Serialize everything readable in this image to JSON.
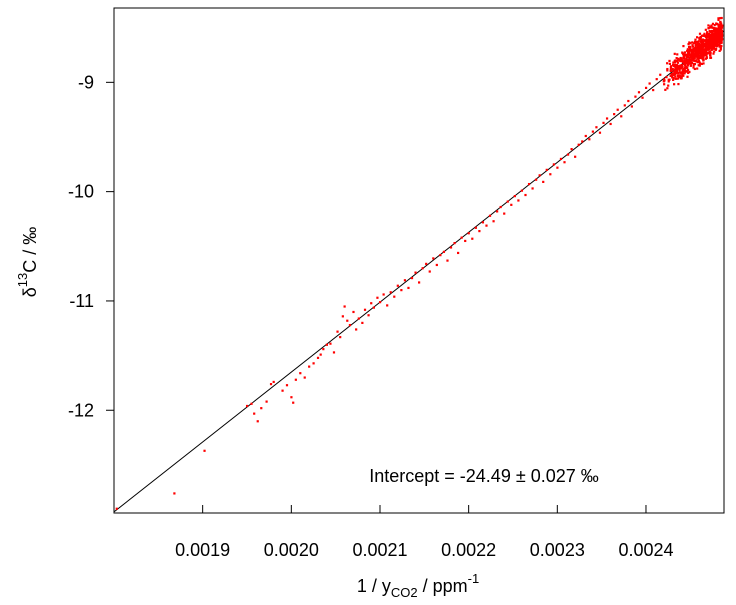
{
  "chart_data": {
    "type": "scatter",
    "title": "",
    "xlabel": {
      "main": "1 / y",
      "sub": "CO2",
      "mid": " / ppm",
      "sup": "-1"
    },
    "ylabel": {
      "pre": "δ",
      "sup": "13",
      "post": "C / ‰"
    },
    "xlim": [
      0.0018,
      0.002488
    ],
    "ylim": [
      -12.94,
      -8.32
    ],
    "xticks": [
      {
        "v": 0.0019,
        "label": "0.0019"
      },
      {
        "v": 0.002,
        "label": "0.0020"
      },
      {
        "v": 0.0021,
        "label": "0.0021"
      },
      {
        "v": 0.0022,
        "label": "0.0022"
      },
      {
        "v": 0.0023,
        "label": "0.0023"
      },
      {
        "v": 0.0024,
        "label": "0.0024"
      }
    ],
    "yticks": [
      {
        "v": -9,
        "label": "-9"
      },
      {
        "v": -10,
        "label": "-10"
      },
      {
        "v": -11,
        "label": "-11"
      },
      {
        "v": -12,
        "label": "-12"
      }
    ],
    "annotation": "Intercept = -24.49 ± 0.027 ‰",
    "fit_line": {
      "x": [
        0.0018,
        0.002488
      ],
      "y": [
        -12.93,
        -8.53
      ]
    },
    "series": [
      {
        "color": "#ff0000",
        "points": [
          [
            0.001803,
            -12.9
          ],
          [
            0.001868,
            -12.76
          ],
          [
            0.001902,
            -12.37
          ],
          [
            0.00195,
            -11.96
          ],
          [
            0.001955,
            -11.94
          ],
          [
            0.001958,
            -12.03
          ],
          [
            0.001962,
            -12.1
          ],
          [
            0.001966,
            -11.98
          ],
          [
            0.001972,
            -11.92
          ],
          [
            0.001977,
            -11.76
          ],
          [
            0.00198,
            -11.74
          ],
          [
            0.00199,
            -11.82
          ],
          [
            0.001995,
            -11.77
          ],
          [
            0.002,
            -11.88
          ],
          [
            0.002002,
            -11.93
          ],
          [
            0.002005,
            -11.72
          ],
          [
            0.00201,
            -11.66
          ],
          [
            0.002015,
            -11.7
          ],
          [
            0.00202,
            -11.6
          ],
          [
            0.002025,
            -11.57
          ],
          [
            0.00203,
            -11.52
          ],
          [
            0.002033,
            -11.49
          ],
          [
            0.002036,
            -11.44
          ],
          [
            0.00204,
            -11.4
          ],
          [
            0.002044,
            -11.39
          ],
          [
            0.002048,
            -11.47
          ],
          [
            0.002052,
            -11.28
          ],
          [
            0.002055,
            -11.33
          ],
          [
            0.002058,
            -11.14
          ],
          [
            0.00206,
            -11.05
          ],
          [
            0.002063,
            -11.18
          ],
          [
            0.002066,
            -11.22
          ],
          [
            0.00207,
            -11.1
          ],
          [
            0.002073,
            -11.26
          ],
          [
            0.002076,
            -11.16
          ],
          [
            0.00208,
            -11.2
          ],
          [
            0.002083,
            -11.08
          ],
          [
            0.002087,
            -11.13
          ],
          [
            0.00209,
            -11.02
          ],
          [
            0.002093,
            -11.06
          ],
          [
            0.002097,
            -10.97
          ],
          [
            0.0021,
            -11.01
          ],
          [
            0.002104,
            -10.94
          ],
          [
            0.002108,
            -11.04
          ],
          [
            0.002112,
            -10.92
          ],
          [
            0.002116,
            -10.96
          ],
          [
            0.00212,
            -10.86
          ],
          [
            0.002124,
            -10.9
          ],
          [
            0.002128,
            -10.81
          ],
          [
            0.002132,
            -10.88
          ],
          [
            0.002136,
            -10.79
          ],
          [
            0.00214,
            -10.74
          ],
          [
            0.002144,
            -10.83
          ],
          [
            0.002148,
            -10.7
          ],
          [
            0.002152,
            -10.66
          ],
          [
            0.002156,
            -10.73
          ],
          [
            0.00216,
            -10.61
          ],
          [
            0.002164,
            -10.67
          ],
          [
            0.002168,
            -10.58
          ],
          [
            0.002172,
            -10.55
          ],
          [
            0.002176,
            -10.63
          ],
          [
            0.00218,
            -10.51
          ],
          [
            0.002184,
            -10.47
          ],
          [
            0.002188,
            -10.56
          ],
          [
            0.002192,
            -10.42
          ],
          [
            0.002196,
            -10.45
          ],
          [
            0.0022,
            -10.38
          ],
          [
            0.002204,
            -10.43
          ],
          [
            0.002208,
            -10.33
          ],
          [
            0.002212,
            -10.36
          ],
          [
            0.002216,
            -10.28
          ],
          [
            0.00222,
            -10.31
          ],
          [
            0.002224,
            -10.22
          ],
          [
            0.002228,
            -10.27
          ],
          [
            0.002232,
            -10.18
          ],
          [
            0.002236,
            -10.14
          ],
          [
            0.00224,
            -10.2
          ],
          [
            0.002244,
            -10.09
          ],
          [
            0.002248,
            -10.12
          ],
          [
            0.002252,
            -10.04
          ],
          [
            0.002256,
            -10.08
          ],
          [
            0.00226,
            -9.99
          ],
          [
            0.002264,
            -10.03
          ],
          [
            0.002268,
            -9.93
          ],
          [
            0.002272,
            -9.97
          ],
          [
            0.002276,
            -9.89
          ],
          [
            0.00228,
            -9.85
          ],
          [
            0.002284,
            -9.91
          ],
          [
            0.002288,
            -9.8
          ],
          [
            0.002292,
            -9.84
          ],
          [
            0.002296,
            -9.75
          ],
          [
            0.0023,
            -9.78
          ],
          [
            0.002304,
            -9.7
          ],
          [
            0.002308,
            -9.73
          ],
          [
            0.002312,
            -9.66
          ],
          [
            0.002316,
            -9.61
          ],
          [
            0.00232,
            -9.68
          ],
          [
            0.002324,
            -9.57
          ],
          [
            0.002328,
            -9.54
          ],
          [
            0.002332,
            -9.49
          ],
          [
            0.002336,
            -9.52
          ],
          [
            0.00234,
            -9.45
          ],
          [
            0.002344,
            -9.41
          ],
          [
            0.002348,
            -9.46
          ],
          [
            0.002352,
            -9.37
          ],
          [
            0.002356,
            -9.33
          ],
          [
            0.00236,
            -9.38
          ],
          [
            0.002364,
            -9.29
          ],
          [
            0.002368,
            -9.25
          ],
          [
            0.002372,
            -9.31
          ],
          [
            0.002376,
            -9.21
          ],
          [
            0.00238,
            -9.17
          ],
          [
            0.002384,
            -9.22
          ],
          [
            0.002388,
            -9.13
          ],
          [
            0.002392,
            -9.09
          ],
          [
            0.002396,
            -9.14
          ],
          [
            0.0024,
            -9.05
          ],
          [
            0.002404,
            -9.01
          ],
          [
            0.002408,
            -9.07
          ],
          [
            0.002412,
            -8.97
          ],
          [
            0.002416,
            -8.93
          ],
          [
            0.00242,
            -8.99
          ],
          [
            0.002424,
            -8.89
          ],
          [
            0.002428,
            -8.86
          ],
          [
            0.002432,
            -8.91
          ],
          [
            0.002436,
            -8.82
          ],
          [
            0.00244,
            -8.78
          ],
          [
            0.002444,
            -8.84
          ],
          [
            0.002448,
            -8.74
          ],
          [
            0.002452,
            -8.71
          ],
          [
            0.002456,
            -8.76
          ],
          [
            0.00246,
            -8.66
          ],
          [
            0.002464,
            -8.63
          ],
          [
            0.002468,
            -8.69
          ],
          [
            0.002472,
            -8.59
          ],
          [
            0.002476,
            -8.56
          ],
          [
            0.00248,
            -8.61
          ],
          [
            0.002484,
            -8.52
          ],
          [
            0.002486,
            -8.48
          ]
        ],
        "cluster": {
          "x": [
            0.00242,
            0.002486
          ],
          "count": 900,
          "spread": 0.06
        }
      }
    ]
  }
}
